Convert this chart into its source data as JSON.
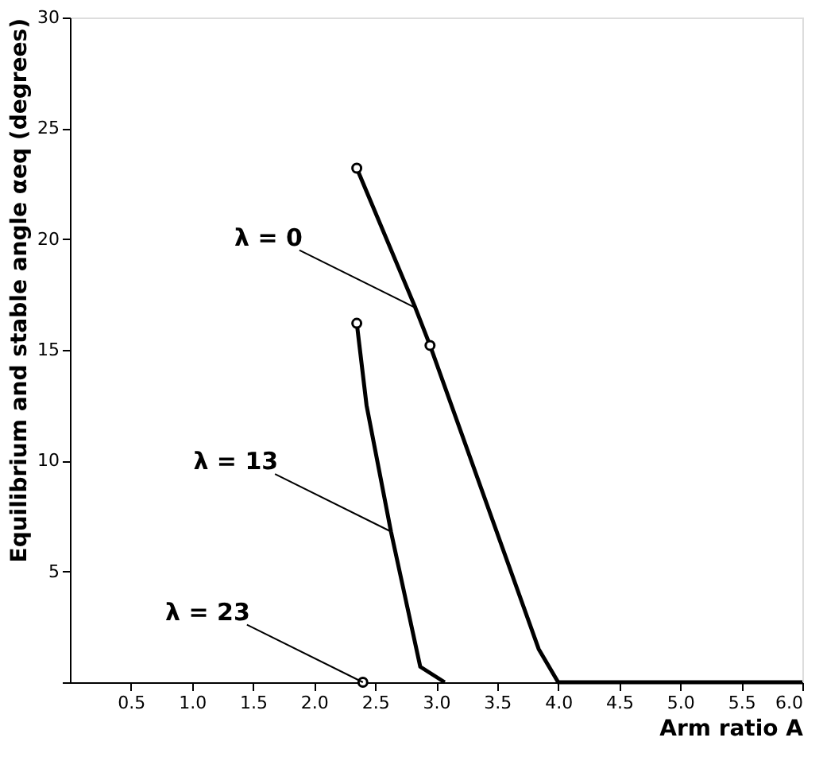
{
  "chart_data": {
    "type": "line",
    "xlabel": "Arm ratio A",
    "ylabel": "Equilibrium and stable angle αeq (degrees)",
    "xlim": [
      0,
      6.0
    ],
    "ylim": [
      0,
      30
    ],
    "xticks": [
      0.5,
      {
        "value": 1.0,
        "label": "1.0"
      },
      1.5,
      {
        "value": 2.0,
        "label": "2.0"
      },
      2.5,
      {
        "value": 3.0,
        "label": "3.0"
      },
      3.5,
      {
        "value": 4.0,
        "label": "4.0"
      },
      4.5,
      {
        "value": 5.0,
        "label": "5.0"
      },
      5.5,
      {
        "value": 6.0,
        "label": "6.0"
      }
    ],
    "yticks": [
      {
        "value": 0,
        "label": null
      },
      5,
      10,
      15,
      20,
      25,
      30
    ],
    "grid": false,
    "line_style": "solid",
    "series": [
      {
        "type": "line",
        "color": "#000000",
        "marker": "none",
        "x": [
          2.35,
          2.83,
          2.95,
          3.84,
          4.0,
          6.0
        ],
        "values": [
          23.2,
          16.9,
          15.2,
          1.5,
          0,
          0
        ]
      },
      {
        "type": "line",
        "color": "#000000",
        "marker": "none",
        "x": [
          2.35,
          2.43,
          2.63,
          2.87,
          3.07
        ],
        "values": [
          16.2,
          12.5,
          6.8,
          0.7,
          0
        ]
      },
      {
        "type": "scatter",
        "color": "#000000",
        "marker": "circle",
        "x": [
          2.35,
          2.95,
          2.35,
          2.4
        ],
        "values": [
          23.2,
          15.2,
          16.2,
          0
        ]
      }
    ],
    "annotations": [
      {
        "text": "λ = 0",
        "x": 2.83,
        "y": 16.9
      },
      {
        "text": "λ = 13",
        "x": 2.63,
        "y": 6.8
      },
      {
        "text": "λ = 23",
        "x": 2.4,
        "y": 0
      }
    ]
  }
}
